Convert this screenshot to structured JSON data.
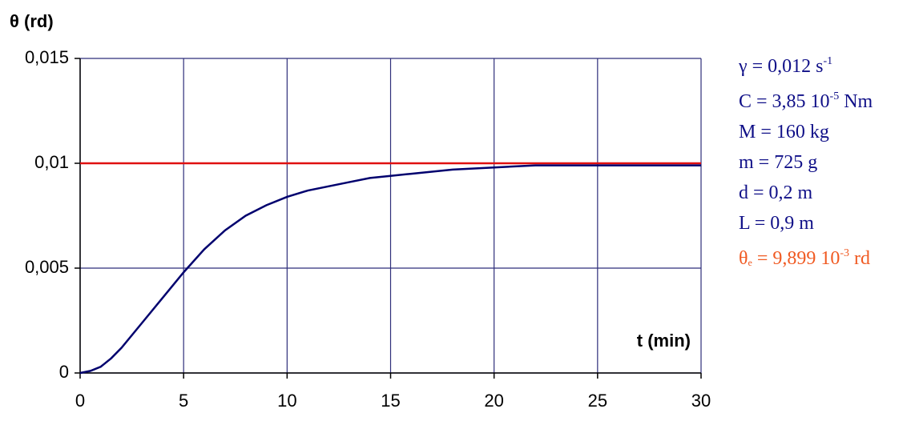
{
  "chart_data": {
    "type": "line",
    "ylabel": "θ (rd)",
    "xlabel": "t (min)",
    "xlim": [
      0,
      30
    ],
    "xticks": [
      0,
      5,
      10,
      15,
      20,
      25,
      30
    ],
    "ylim": [
      0,
      0.015
    ],
    "yticks": [
      0,
      {
        "value": 0.005,
        "label": "0,005"
      },
      {
        "value": 0.01,
        "label": "0,01"
      },
      {
        "value": 0.015,
        "label": "0,015"
      }
    ],
    "grid": true,
    "grid_color": "#2e2e7a",
    "series": [
      {
        "color": "#00006e",
        "x": [
          0,
          0.5,
          1,
          1.5,
          2,
          3,
          4,
          5,
          6,
          7,
          8,
          9,
          10,
          11,
          12,
          13,
          14,
          15,
          16,
          18,
          20,
          22,
          25,
          30
        ],
        "values": [
          0,
          0.0001,
          0.0003,
          0.0007,
          0.0012,
          0.0024,
          0.0036,
          0.0048,
          0.0059,
          0.0068,
          0.0075,
          0.008,
          0.0084,
          0.0087,
          0.0089,
          0.0091,
          0.0093,
          0.0094,
          0.0095,
          0.0097,
          0.0098,
          0.0099,
          0.0099,
          0.0099
        ]
      },
      {
        "color": "#e01010",
        "x": [
          0,
          30
        ],
        "values": [
          0.01,
          0.01
        ]
      }
    ],
    "annotations": [
      {
        "color": "#101088",
        "parts": [
          {
            "text": "γ = 0,012 s"
          },
          {
            "sup": "-1"
          }
        ]
      },
      {
        "color": "#101088",
        "parts": [
          {
            "text": "C = 3,85 10"
          },
          {
            "sup": "-5"
          },
          {
            "text": " Nm"
          }
        ]
      },
      {
        "color": "#101088",
        "parts": [
          {
            "text": "M = 160 kg"
          }
        ]
      },
      {
        "color": "#101088",
        "parts": [
          {
            "text": "m = 725 g"
          }
        ]
      },
      {
        "color": "#101088",
        "parts": [
          {
            "text": "d = 0,2 m"
          }
        ]
      },
      {
        "color": "#101088",
        "parts": [
          {
            "text": "L = 0,9 m"
          }
        ]
      },
      {
        "color": "#f05a22",
        "parts": [
          {
            "text": "θ"
          },
          {
            "sub": "e"
          },
          {
            "text": " = 9,899 10"
          },
          {
            "sup": "-3"
          },
          {
            "text": " rd"
          }
        ]
      }
    ]
  }
}
